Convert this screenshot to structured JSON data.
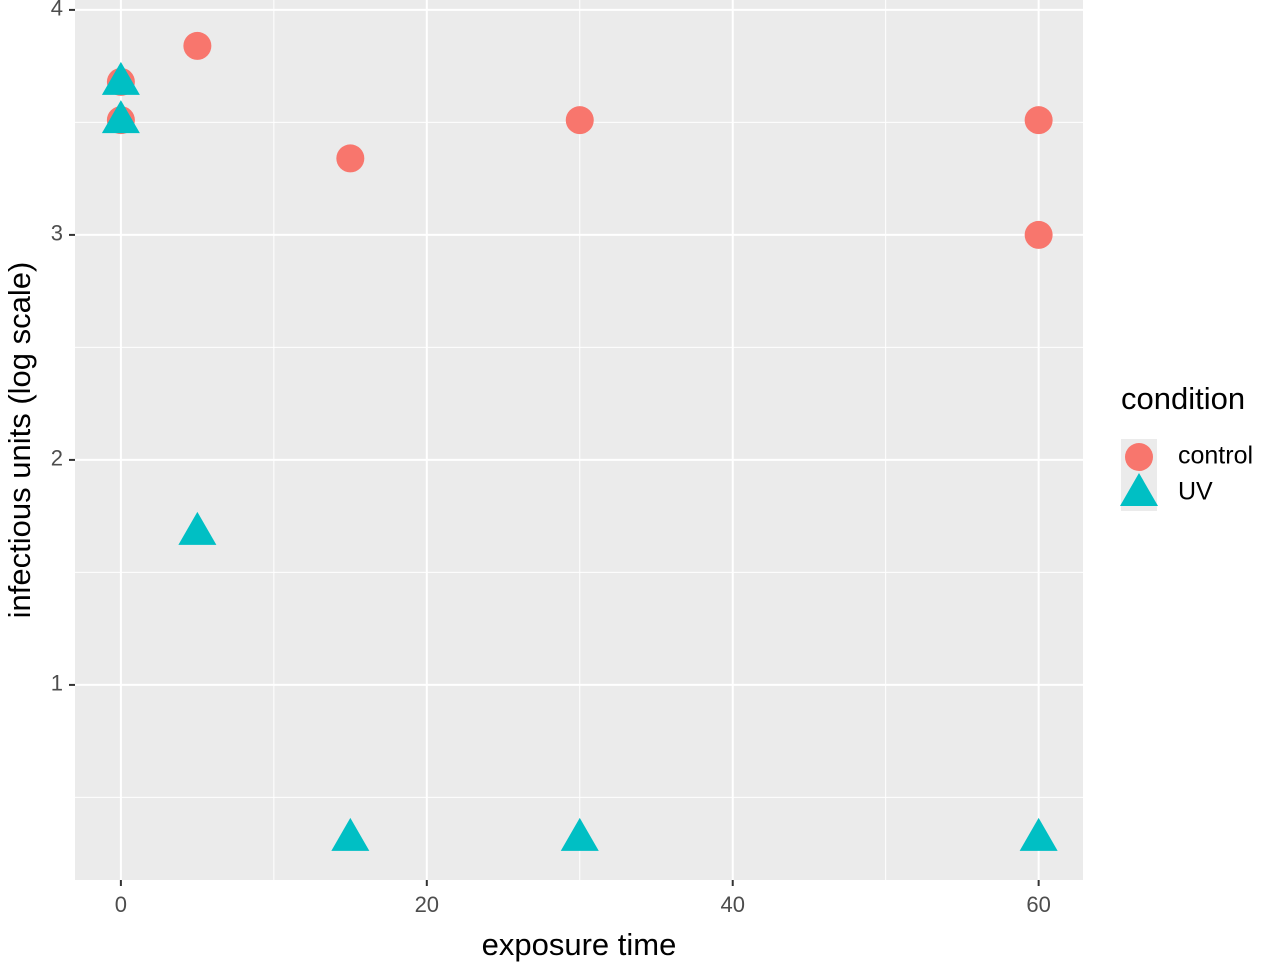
{
  "chart_data": {
    "type": "scatter",
    "x_label": "exposure time",
    "y_label": "infectious units (log scale)",
    "legend_title": "condition",
    "legend": "right",
    "grid": true,
    "panel_color": "#ebebeb",
    "xlim": [
      -3,
      62.9
    ],
    "ylim": [
      0.133,
      4.044
    ],
    "xticks": [
      0,
      20,
      40,
      60
    ],
    "yticks": [
      1,
      2,
      3,
      4
    ],
    "xminor": [
      10,
      30,
      50
    ],
    "yminor": [
      0.5,
      1.5,
      2.5,
      3.5
    ],
    "series": [
      {
        "name": "control",
        "color": "#F8766D",
        "shape": "circle",
        "x": [
          0,
          0,
          5,
          15,
          30,
          60,
          60
        ],
        "values": [
          3.68,
          3.51,
          3.84,
          3.34,
          3.51,
          3.51,
          3.0
        ]
      },
      {
        "name": "UV",
        "color": "#00BFC4",
        "shape": "triangle",
        "x": [
          0,
          0,
          5,
          15,
          30,
          60
        ],
        "values": [
          3.68,
          3.51,
          1.68,
          0.32,
          0.32,
          0.32
        ]
      }
    ]
  }
}
